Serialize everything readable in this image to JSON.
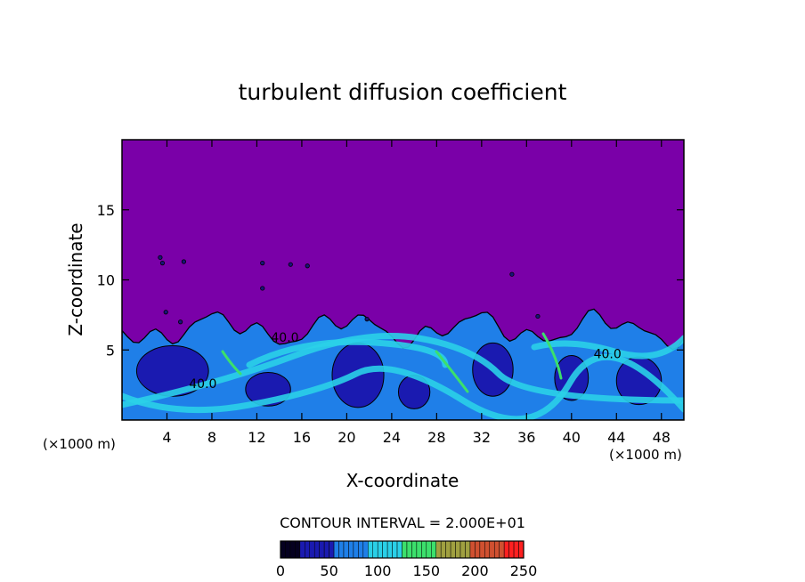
{
  "chart_data": {
    "type": "heatmap",
    "title": "turbulent diffusion coefficient",
    "xlabel": "X-coordinate",
    "ylabel": "Z-coordinate",
    "x_unit_left": "(×1000 m)",
    "x_unit_right": "(×1000 m)",
    "xlim": [
      0,
      50
    ],
    "ylim": [
      0,
      20
    ],
    "x_ticks": [
      4,
      8,
      12,
      16,
      20,
      24,
      28,
      32,
      36,
      40,
      44,
      48
    ],
    "y_ticks": [
      5,
      10,
      15
    ],
    "contour_labels": [
      {
        "text": "40.0",
        "x": 14.5,
        "z": 5.6
      },
      {
        "text": "40.0",
        "x": 7.2,
        "z": 2.3
      },
      {
        "text": "40.0",
        "x": 43.2,
        "z": 4.4
      }
    ],
    "contour_interval_text": "CONTOUR INTERVAL = 2.000E+01",
    "colorbar": {
      "range": [
        0,
        250
      ],
      "ticks": [
        "0",
        "50",
        "100",
        "150",
        "200",
        "250"
      ]
    },
    "boundary_layer_top_km": 6.5,
    "background_value": 0,
    "colors": {
      "background": "#7a00a8",
      "low": "#1a1ab0",
      "mid": "#1f7fe8",
      "high": "#2ad0e8",
      "peak": "#3ce06c"
    }
  }
}
